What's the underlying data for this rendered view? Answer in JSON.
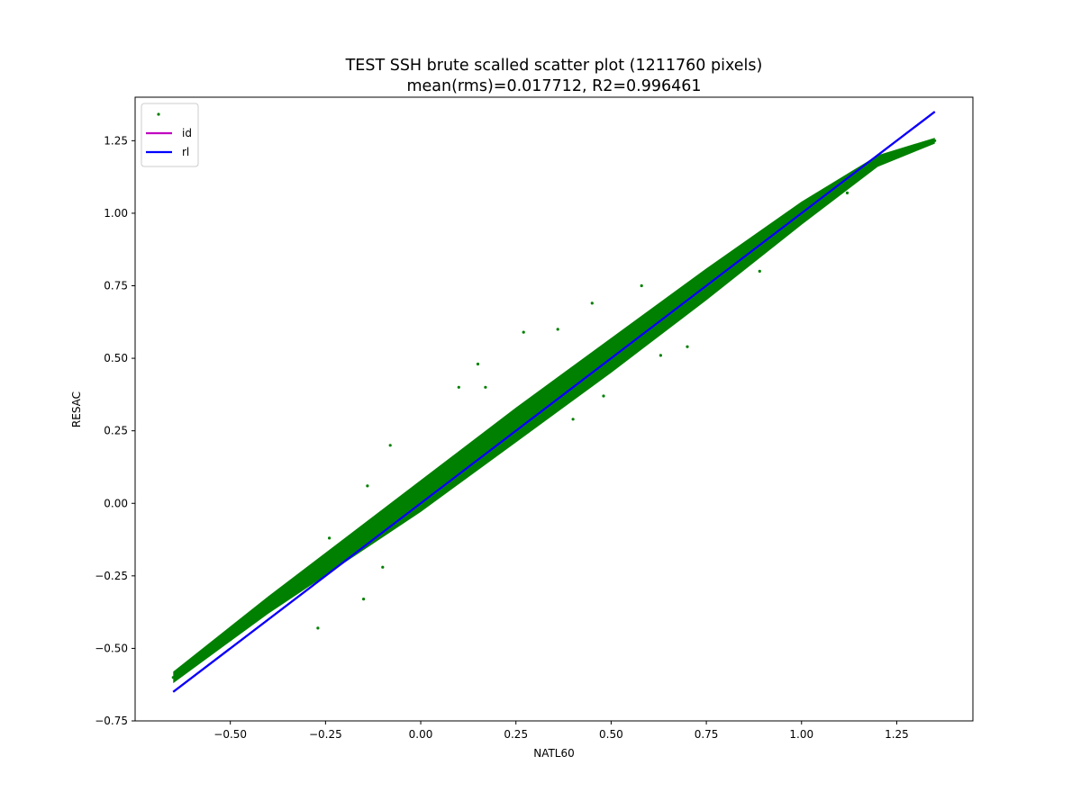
{
  "chart_data": {
    "type": "scatter",
    "title": "TEST SSH brute scalled scatter plot (1211760 pixels)",
    "subtitle": "mean(rms)=0.017712, R2=0.996461",
    "xlabel": "NATL60",
    "ylabel": "RESAC",
    "xlim": [
      -0.75,
      1.45
    ],
    "ylim": [
      -0.75,
      1.4
    ],
    "x_ticks": [
      -0.5,
      -0.25,
      0.0,
      0.25,
      0.5,
      0.75,
      1.0,
      1.25
    ],
    "y_ticks": [
      -0.75,
      -0.5,
      -0.25,
      0.0,
      0.25,
      0.5,
      0.75,
      1.0,
      1.25
    ],
    "x_tick_labels": [
      "−0.50",
      "−0.25",
      "0.00",
      "0.25",
      "0.50",
      "0.75",
      "1.00",
      "1.25"
    ],
    "y_tick_labels": [
      "−0.75",
      "−0.50",
      "−0.25",
      "0.00",
      "0.25",
      "0.50",
      "0.75",
      "1.00",
      "1.25"
    ],
    "grid": false,
    "legend_position": "top-left",
    "series": [
      {
        "name": "",
        "kind": "points",
        "color": "#008000",
        "points": [
          [
            -0.65,
            -0.6
          ],
          [
            -0.6,
            -0.56
          ],
          [
            -0.57,
            -0.53
          ],
          [
            -0.55,
            -0.5
          ],
          [
            -0.5,
            -0.47
          ],
          [
            -0.45,
            -0.42
          ],
          [
            -0.4,
            -0.36
          ],
          [
            -0.35,
            -0.31
          ],
          [
            -0.3,
            -0.27
          ],
          [
            -0.25,
            -0.22
          ],
          [
            -0.2,
            -0.17
          ],
          [
            -0.15,
            -0.12
          ],
          [
            -0.1,
            -0.07
          ],
          [
            -0.05,
            -0.02
          ],
          [
            0.0,
            0.02
          ],
          [
            0.05,
            0.07
          ],
          [
            0.1,
            0.11
          ],
          [
            0.15,
            0.16
          ],
          [
            0.2,
            0.21
          ],
          [
            0.25,
            0.26
          ],
          [
            0.3,
            0.31
          ],
          [
            0.35,
            0.36
          ],
          [
            0.4,
            0.41
          ],
          [
            0.45,
            0.46
          ],
          [
            0.5,
            0.51
          ],
          [
            0.55,
            0.56
          ],
          [
            0.6,
            0.6
          ],
          [
            0.65,
            0.65
          ],
          [
            0.7,
            0.7
          ],
          [
            0.75,
            0.75
          ],
          [
            0.8,
            0.8
          ],
          [
            0.85,
            0.85
          ],
          [
            0.9,
            0.9
          ],
          [
            0.95,
            0.95
          ],
          [
            1.0,
            1.0
          ],
          [
            1.05,
            1.05
          ],
          [
            1.1,
            1.1
          ],
          [
            1.15,
            1.15
          ],
          [
            1.2,
            1.19
          ],
          [
            1.25,
            1.21
          ],
          [
            1.3,
            1.23
          ],
          [
            1.35,
            1.25
          ],
          [
            0.15,
            0.48
          ],
          [
            0.27,
            0.59
          ],
          [
            0.1,
            0.4
          ],
          [
            0.17,
            0.4
          ],
          [
            -0.14,
            0.06
          ],
          [
            -0.24,
            -0.12
          ],
          [
            -0.08,
            0.2
          ],
          [
            0.36,
            0.6
          ],
          [
            0.45,
            0.69
          ],
          [
            0.58,
            0.75
          ],
          [
            0.4,
            0.29
          ],
          [
            0.7,
            0.54
          ],
          [
            0.48,
            0.37
          ],
          [
            -0.1,
            -0.22
          ],
          [
            -0.27,
            -0.43
          ],
          [
            -0.15,
            -0.33
          ],
          [
            0.63,
            0.51
          ],
          [
            0.89,
            0.8
          ],
          [
            1.12,
            1.07
          ]
        ]
      },
      {
        "name": "id",
        "kind": "line",
        "color": "#bf00bf",
        "x": [
          -0.65,
          1.35
        ],
        "y": [
          -0.65,
          1.35
        ]
      },
      {
        "name": "rl",
        "kind": "line",
        "color": "#0000ff",
        "x": [
          -0.65,
          1.35
        ],
        "y": [
          -0.65,
          1.35
        ]
      }
    ],
    "band": {
      "color": "#008000",
      "lower": [
        [
          -0.65,
          -0.62
        ],
        [
          -0.4,
          -0.38
        ],
        [
          0.0,
          -0.03
        ],
        [
          0.25,
          0.21
        ],
        [
          0.5,
          0.45
        ],
        [
          0.75,
          0.7
        ],
        [
          1.0,
          0.96
        ],
        [
          1.2,
          1.16
        ],
        [
          1.35,
          1.24
        ]
      ],
      "upper": [
        [
          -0.65,
          -0.58
        ],
        [
          -0.4,
          -0.32
        ],
        [
          0.0,
          0.08
        ],
        [
          0.25,
          0.33
        ],
        [
          0.5,
          0.57
        ],
        [
          0.75,
          0.81
        ],
        [
          1.0,
          1.04
        ],
        [
          1.2,
          1.2
        ],
        [
          1.35,
          1.26
        ]
      ]
    }
  }
}
